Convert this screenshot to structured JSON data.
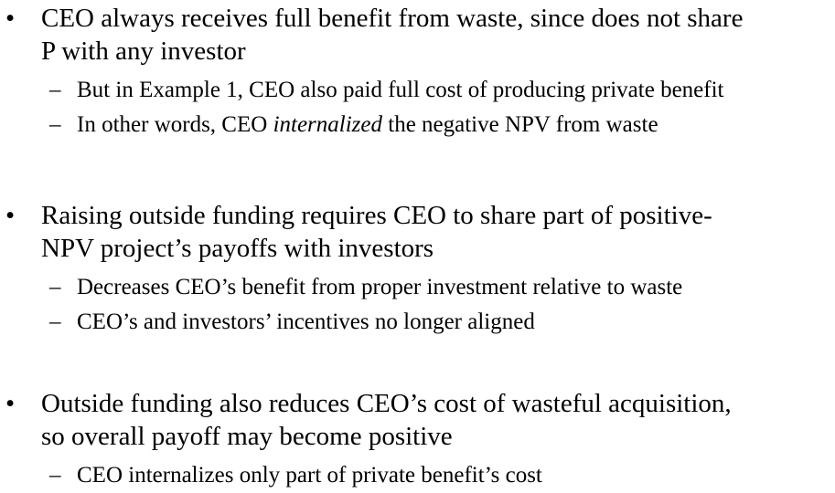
{
  "bullets": [
    {
      "lines": [
        "CEO always receives full benefit from waste, since does not share",
        "P with any investor"
      ],
      "subs": [
        {
          "text": "But in Example 1, CEO also paid full cost of producing private benefit"
        },
        {
          "before": "In other words, CEO ",
          "italic": "internalized",
          "after": " the negative NPV from waste"
        }
      ]
    },
    {
      "lines": [
        "Raising outside funding requires CEO to share part of positive-",
        "NPV project’s payoffs with investors"
      ],
      "subs": [
        {
          "text": "Decreases CEO’s benefit from proper investment relative to waste"
        },
        {
          "text": "CEO’s and investors’ incentives no longer aligned"
        }
      ]
    },
    {
      "lines": [
        "Outside funding also reduces CEO’s cost of wasteful acquisition,",
        "so overall payoff may become positive"
      ],
      "subs": [
        {
          "text": "CEO internalizes only part of private benefit’s cost"
        }
      ]
    }
  ],
  "symbols": {
    "bullet": "•",
    "dash": "–"
  }
}
